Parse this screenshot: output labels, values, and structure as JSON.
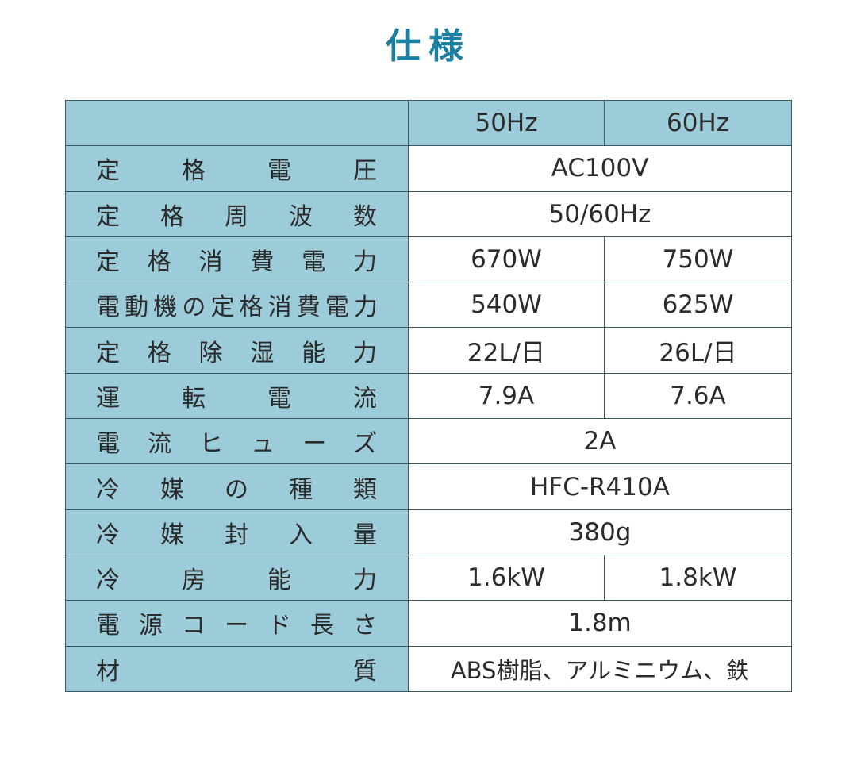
{
  "title": "仕様",
  "header": {
    "col1": "50Hz",
    "col2": "60Hz"
  },
  "rows": [
    {
      "label": "定格電圧",
      "value": "AC100V"
    },
    {
      "label": "定格周波数",
      "value": "50/60Hz"
    },
    {
      "label": "定格消費電力",
      "v50": "670W",
      "v60": "750W"
    },
    {
      "label": "電動機の定格消費電力",
      "v50": "540W",
      "v60": "625W"
    },
    {
      "label": "定格除湿能力",
      "v50": "22L/日",
      "v60": "26L/日"
    },
    {
      "label": "運転電流",
      "v50": "7.9A",
      "v60": "7.6A"
    },
    {
      "label": "電流ヒューズ",
      "value": "2A"
    },
    {
      "label": "冷媒の種類",
      "value": "HFC-R410A"
    },
    {
      "label": "冷媒封入量",
      "value": "380g"
    },
    {
      "label": "冷房能力",
      "v50": "1.6kW",
      "v60": "1.8kW"
    },
    {
      "label": "電源コード長さ",
      "value": "1.8m"
    },
    {
      "label": "材質",
      "value": "ABS樹脂、アルミニウム、鉄"
    }
  ],
  "colors": {
    "title": "#1a7fa0",
    "label_bg": "#9ccbd9",
    "border": "#3d5a60"
  }
}
